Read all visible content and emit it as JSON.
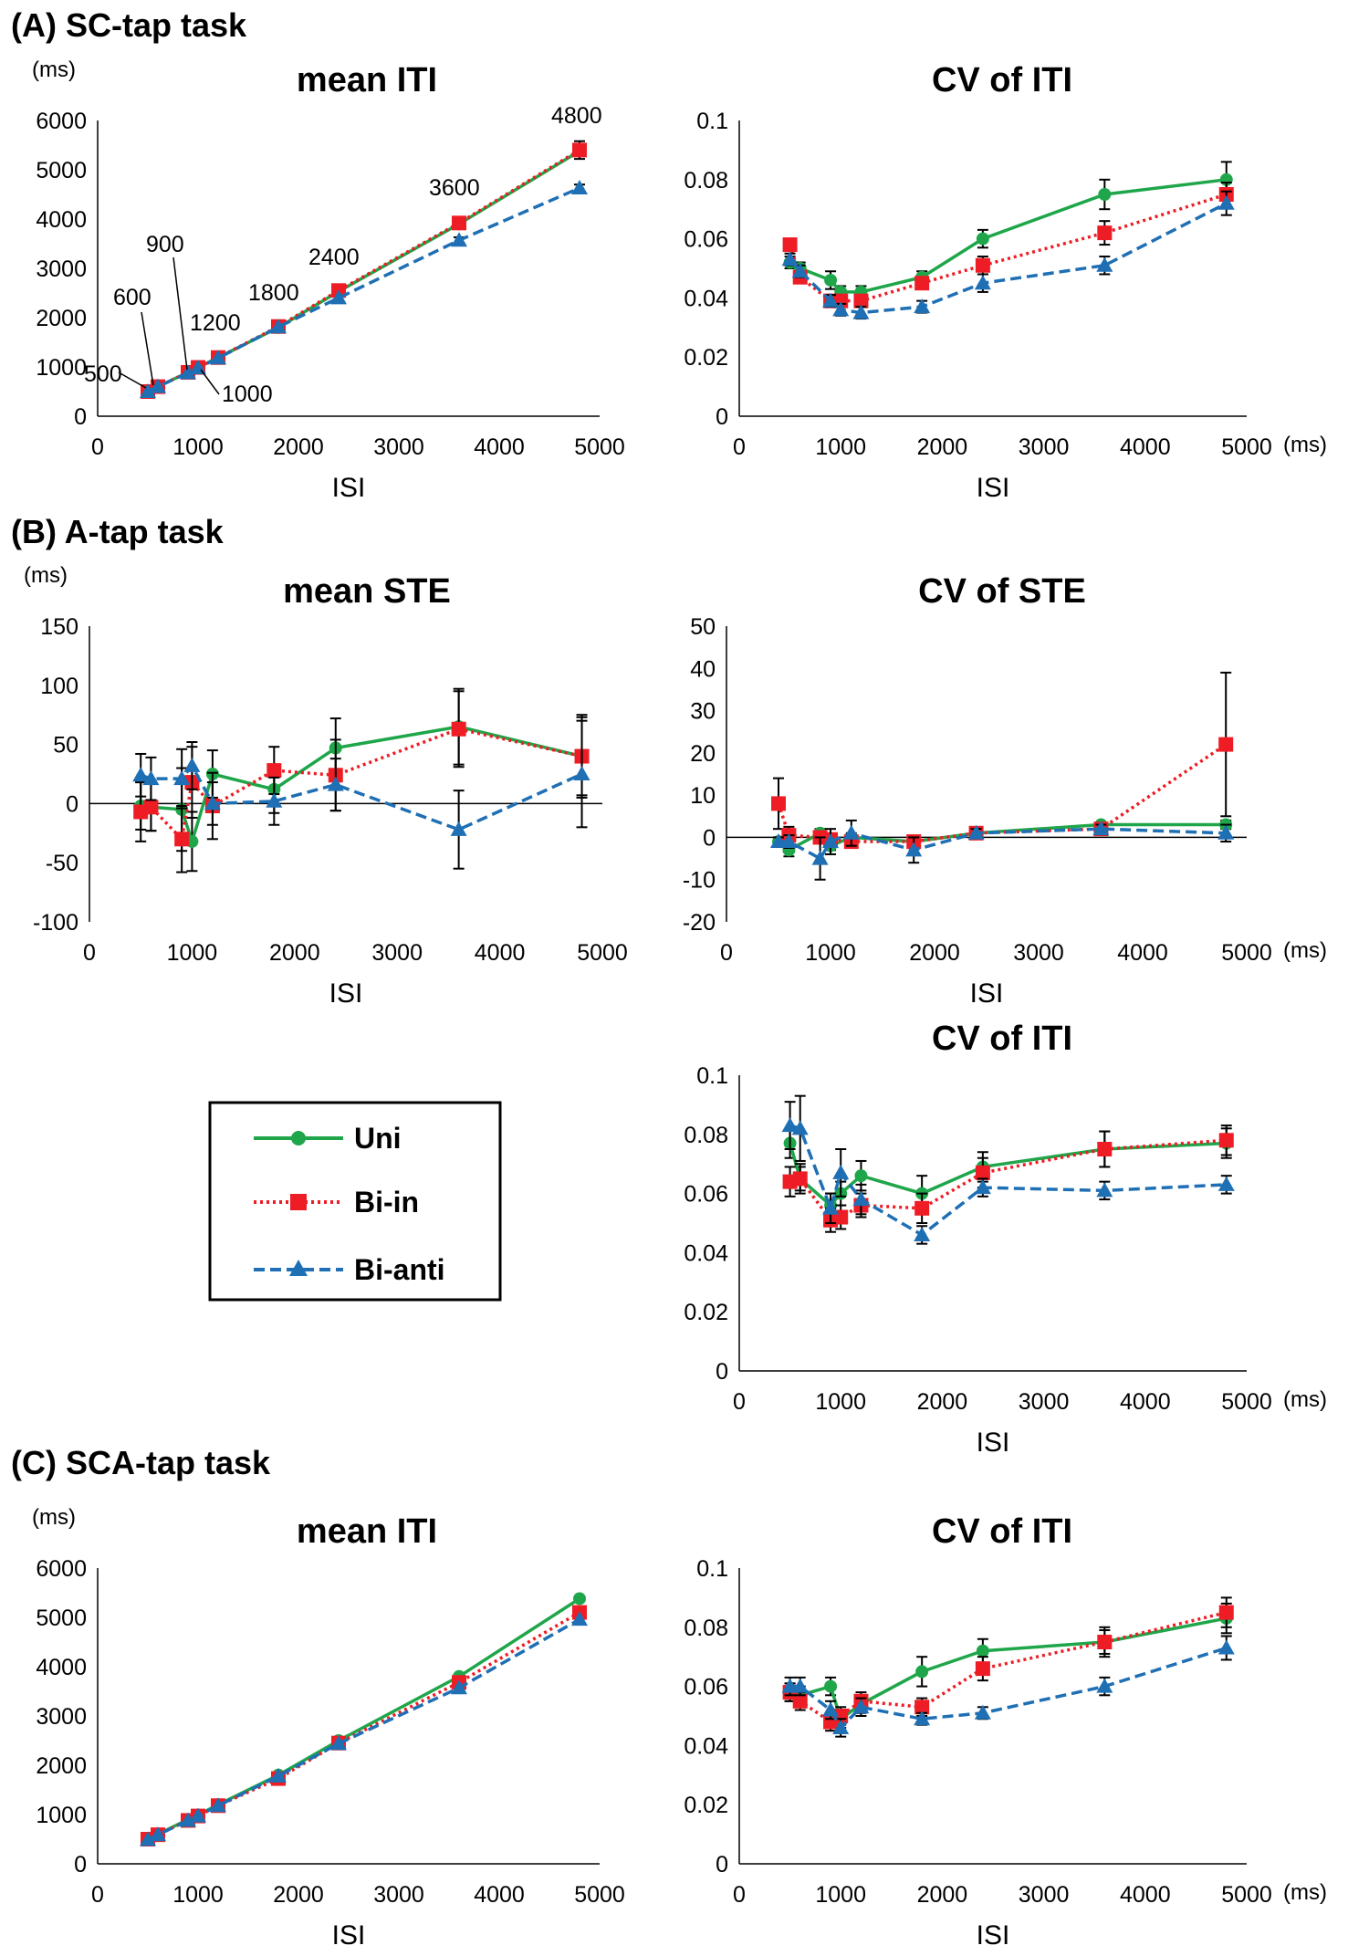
{
  "sections": [
    {
      "label": "(A) SC-tap task"
    },
    {
      "label": "(B) A-tap task"
    },
    {
      "label": "(C) SCA-tap task"
    }
  ],
  "legend": [
    {
      "name": "Uni",
      "color": "#1fa64a",
      "marker": "circle",
      "dash": "solid"
    },
    {
      "name": "Bi-in",
      "color": "#ee1c24",
      "marker": "square",
      "dash": "dotted"
    },
    {
      "name": "Bi-anti",
      "color": "#1f6fb4",
      "marker": "triangle",
      "dash": "dashed"
    }
  ],
  "chart_data": [
    {
      "id": "A-mean-ITI",
      "type": "line",
      "title": "mean ITI",
      "xlabel": "ISI",
      "ylabel": "(ms)",
      "xunit": "",
      "xlim": [
        0,
        5000
      ],
      "ylim": [
        0,
        6000
      ],
      "xticks": [
        "0",
        "1000",
        "2000",
        "3000",
        "4000",
        "5000"
      ],
      "yticks": [
        "0",
        "1000",
        "2000",
        "3000",
        "4000",
        "5000",
        "6000"
      ],
      "annotations": [
        "500",
        "600",
        "900",
        "1000",
        "1200",
        "1800",
        "2400",
        "3600",
        "4800"
      ],
      "series": [
        {
          "name": "Uni",
          "x": [
            500,
            600,
            900,
            1000,
            1200,
            1800,
            2400,
            3600,
            4800
          ],
          "y": [
            500,
            600,
            890,
            990,
            1190,
            1800,
            2530,
            3900,
            5380
          ],
          "err": [
            0,
            0,
            0,
            0,
            0,
            0,
            0,
            0,
            0
          ]
        },
        {
          "name": "Bi-in",
          "x": [
            500,
            600,
            900,
            1000,
            1200,
            1800,
            2400,
            3600,
            4800
          ],
          "y": [
            500,
            600,
            890,
            990,
            1190,
            1820,
            2550,
            3920,
            5400
          ],
          "err": [
            0,
            0,
            0,
            0,
            0,
            0,
            60,
            90,
            180
          ]
        },
        {
          "name": "Bi-anti",
          "x": [
            500,
            600,
            900,
            1000,
            1200,
            1800,
            2400,
            3600,
            4800
          ],
          "y": [
            500,
            600,
            880,
            980,
            1180,
            1810,
            2400,
            3570,
            4630
          ],
          "err": [
            0,
            0,
            0,
            0,
            0,
            0,
            0,
            60,
            70
          ]
        }
      ]
    },
    {
      "id": "A-CV-ITI",
      "type": "line",
      "title": "CV of ITI",
      "xlabel": "ISI",
      "ylabel": "",
      "xunit": "(ms)",
      "xlim": [
        0,
        5000
      ],
      "ylim": [
        0,
        0.1
      ],
      "xticks": [
        "0",
        "1000",
        "2000",
        "3000",
        "4000",
        "5000"
      ],
      "yticks": [
        "0",
        "0.02",
        "0.04",
        "0.06",
        "0.08",
        "0.1"
      ],
      "annotations": [],
      "series": [
        {
          "name": "Uni",
          "x": [
            500,
            600,
            900,
            1000,
            1200,
            1800,
            2400,
            3600,
            4800
          ],
          "y": [
            0.052,
            0.05,
            0.046,
            0.042,
            0.042,
            0.047,
            0.06,
            0.075,
            0.08
          ],
          "err": [
            0.002,
            0.002,
            0.003,
            0.002,
            0.002,
            0.002,
            0.003,
            0.005,
            0.006
          ]
        },
        {
          "name": "Bi-in",
          "x": [
            500,
            600,
            900,
            1000,
            1200,
            1800,
            2400,
            3600,
            4800
          ],
          "y": [
            0.058,
            0.047,
            0.039,
            0.039,
            0.039,
            0.045,
            0.051,
            0.062,
            0.075
          ],
          "err": [
            0.002,
            0.002,
            0.002,
            0.002,
            0.002,
            0.002,
            0.003,
            0.004,
            0.004
          ]
        },
        {
          "name": "Bi-anti",
          "x": [
            500,
            600,
            900,
            1000,
            1200,
            1800,
            2400,
            3600,
            4800
          ],
          "y": [
            0.053,
            0.049,
            0.039,
            0.036,
            0.035,
            0.037,
            0.045,
            0.051,
            0.072
          ],
          "err": [
            0.002,
            0.002,
            0.002,
            0.002,
            0.002,
            0.002,
            0.003,
            0.003,
            0.004
          ]
        }
      ]
    },
    {
      "id": "B-mean-STE",
      "type": "line",
      "title": "mean STE",
      "xlabel": "ISI",
      "ylabel": "(ms)",
      "xunit": "",
      "xlim": [
        0,
        5000
      ],
      "ylim": [
        -100,
        150
      ],
      "xticks": [
        "0",
        "1000",
        "2000",
        "3000",
        "4000",
        "5000"
      ],
      "yticks": [
        "-100",
        "-50",
        "0",
        "50",
        "100",
        "150"
      ],
      "annotations": [],
      "series": [
        {
          "name": "Uni",
          "x": [
            500,
            600,
            900,
            1000,
            1200,
            1800,
            2400,
            3600,
            4800
          ],
          "y": [
            -2,
            -3,
            -5,
            -32,
            25,
            12,
            47,
            65,
            40
          ],
          "err": [
            20,
            20,
            35,
            25,
            20,
            20,
            25,
            32,
            35
          ]
        },
        {
          "name": "Bi-in",
          "x": [
            500,
            600,
            900,
            1000,
            1200,
            1800,
            2400,
            3600,
            4800
          ],
          "y": [
            -7,
            -3,
            -30,
            18,
            -2,
            28,
            24,
            63,
            40
          ],
          "err": [
            25,
            20,
            28,
            30,
            28,
            20,
            30,
            32,
            33
          ]
        },
        {
          "name": "Bi-anti",
          "x": [
            500,
            600,
            900,
            1000,
            1200,
            1800,
            2400,
            3600,
            4800
          ],
          "y": [
            24,
            21,
            21,
            32,
            0,
            2,
            16,
            -22,
            25
          ],
          "err": [
            18,
            18,
            25,
            20,
            18,
            20,
            22,
            33,
            45
          ]
        }
      ]
    },
    {
      "id": "B-CV-STE",
      "type": "line",
      "title": "CV of STE",
      "xlabel": "ISI",
      "ylabel": "",
      "xunit": "(ms)",
      "xlim": [
        0,
        5000
      ],
      "ylim": [
        -20,
        50
      ],
      "xticks": [
        "0",
        "1000",
        "2000",
        "3000",
        "4000",
        "5000"
      ],
      "yticks": [
        "-20",
        "-10",
        "0",
        "10",
        "20",
        "30",
        "40",
        "50"
      ],
      "annotations": [],
      "series": [
        {
          "name": "Uni",
          "x": [
            500,
            600,
            900,
            1000,
            1200,
            1800,
            2400,
            3600,
            4800
          ],
          "y": [
            -1,
            -3,
            1,
            -2,
            0,
            -1,
            1,
            3,
            3
          ],
          "err": [
            1,
            1.5,
            1,
            1,
            1,
            1,
            1,
            0.5,
            1
          ]
        },
        {
          "name": "Bi-in",
          "x": [
            500,
            600,
            900,
            1000,
            1200,
            1800,
            2400,
            3600,
            4800
          ],
          "y": [
            8,
            0.5,
            0,
            -0.5,
            -1,
            -1,
            1,
            2,
            22
          ],
          "err": [
            6,
            2,
            1,
            1,
            1,
            1,
            1,
            1,
            17
          ]
        },
        {
          "name": "Bi-anti",
          "x": [
            500,
            600,
            900,
            1000,
            1200,
            1800,
            2400,
            3600,
            4800
          ],
          "y": [
            -1,
            -1,
            -5,
            -1,
            1,
            -3,
            1,
            2,
            1
          ],
          "err": [
            1,
            1.5,
            5,
            3,
            3,
            3,
            1,
            1,
            2
          ]
        }
      ]
    },
    {
      "id": "B-CV-ITI",
      "type": "line",
      "title": "CV of ITI",
      "xlabel": "ISI",
      "ylabel": "",
      "xunit": "(ms)",
      "xlim": [
        0,
        5000
      ],
      "ylim": [
        0,
        0.1
      ],
      "xticks": [
        "0",
        "1000",
        "2000",
        "3000",
        "4000",
        "5000"
      ],
      "yticks": [
        "0",
        "0.02",
        "0.04",
        "0.06",
        "0.08",
        "0.1"
      ],
      "annotations": [],
      "series": [
        {
          "name": "Uni",
          "x": [
            500,
            600,
            900,
            1000,
            1200,
            1800,
            2400,
            3600,
            4800
          ],
          "y": [
            0.077,
            0.065,
            0.056,
            0.06,
            0.066,
            0.06,
            0.069,
            0.075,
            0.077
          ],
          "err": [
            0.005,
            0.004,
            0.004,
            0.004,
            0.005,
            0.006,
            0.005,
            0.006,
            0.005
          ]
        },
        {
          "name": "Bi-in",
          "x": [
            500,
            600,
            900,
            1000,
            1200,
            1800,
            2400,
            3600,
            4800
          ],
          "y": [
            0.064,
            0.065,
            0.051,
            0.052,
            0.056,
            0.055,
            0.067,
            0.075,
            0.078
          ],
          "err": [
            0.005,
            0.005,
            0.004,
            0.004,
            0.004,
            0.005,
            0.005,
            0.006,
            0.005
          ]
        },
        {
          "name": "Bi-anti",
          "x": [
            500,
            600,
            900,
            1000,
            1200,
            1800,
            2400,
            3600,
            4800
          ],
          "y": [
            0.083,
            0.082,
            0.055,
            0.067,
            0.058,
            0.046,
            0.062,
            0.061,
            0.063
          ],
          "err": [
            0.008,
            0.011,
            0.005,
            0.008,
            0.005,
            0.003,
            0.003,
            0.003,
            0.003
          ]
        }
      ]
    },
    {
      "id": "C-mean-ITI",
      "type": "line",
      "title": "mean ITI",
      "xlabel": "ISI",
      "ylabel": "(ms)",
      "xunit": "",
      "xlim": [
        0,
        5000
      ],
      "ylim": [
        0,
        6000
      ],
      "xticks": [
        "0",
        "1000",
        "2000",
        "3000",
        "4000",
        "5000"
      ],
      "yticks": [
        "0",
        "1000",
        "2000",
        "3000",
        "4000",
        "5000",
        "6000"
      ],
      "annotations": [],
      "series": [
        {
          "name": "Uni",
          "x": [
            500,
            600,
            900,
            1000,
            1200,
            1800,
            2400,
            3600,
            4800
          ],
          "y": [
            500,
            600,
            900,
            990,
            1200,
            1800,
            2500,
            3800,
            5380
          ],
          "err": [
            0,
            0,
            0,
            0,
            0,
            0,
            0,
            0,
            0
          ]
        },
        {
          "name": "Bi-in",
          "x": [
            500,
            600,
            900,
            1000,
            1200,
            1800,
            2400,
            3600,
            4800
          ],
          "y": [
            500,
            590,
            880,
            970,
            1180,
            1730,
            2450,
            3680,
            5100
          ],
          "err": [
            0,
            0,
            0,
            0,
            0,
            0,
            0,
            0,
            0
          ]
        },
        {
          "name": "Bi-anti",
          "x": [
            500,
            600,
            900,
            1000,
            1200,
            1800,
            2400,
            3600,
            4800
          ],
          "y": [
            490,
            590,
            880,
            970,
            1180,
            1780,
            2440,
            3570,
            4960
          ],
          "err": [
            0,
            0,
            0,
            0,
            0,
            0,
            0,
            0,
            0
          ]
        }
      ]
    },
    {
      "id": "C-CV-ITI",
      "type": "line",
      "title": "CV of ITI",
      "xlabel": "ISI",
      "ylabel": "",
      "xunit": "(ms)",
      "xlim": [
        0,
        5000
      ],
      "ylim": [
        0,
        0.1
      ],
      "xticks": [
        "0",
        "1000",
        "2000",
        "3000",
        "4000",
        "5000"
      ],
      "yticks": [
        "0",
        "0.02",
        "0.04",
        "0.06",
        "0.08",
        "0.1"
      ],
      "annotations": [],
      "series": [
        {
          "name": "Uni",
          "x": [
            500,
            600,
            900,
            1000,
            1200,
            1800,
            2400,
            3600,
            4800
          ],
          "y": [
            0.058,
            0.057,
            0.06,
            0.049,
            0.054,
            0.065,
            0.072,
            0.075,
            0.083
          ],
          "err": [
            0.003,
            0.003,
            0.003,
            0.003,
            0.003,
            0.005,
            0.004,
            0.005,
            0.005
          ]
        },
        {
          "name": "Bi-in",
          "x": [
            500,
            600,
            900,
            1000,
            1200,
            1800,
            2400,
            3600,
            4800
          ],
          "y": [
            0.058,
            0.055,
            0.048,
            0.05,
            0.055,
            0.053,
            0.066,
            0.075,
            0.085
          ],
          "err": [
            0.003,
            0.003,
            0.003,
            0.003,
            0.003,
            0.003,
            0.004,
            0.004,
            0.005
          ]
        },
        {
          "name": "Bi-anti",
          "x": [
            500,
            600,
            900,
            1000,
            1200,
            1800,
            2400,
            3600,
            4800
          ],
          "y": [
            0.06,
            0.06,
            0.052,
            0.046,
            0.053,
            0.049,
            0.051,
            0.06,
            0.073
          ],
          "err": [
            0.003,
            0.003,
            0.003,
            0.003,
            0.003,
            0.002,
            0.002,
            0.003,
            0.004
          ]
        }
      ]
    }
  ]
}
